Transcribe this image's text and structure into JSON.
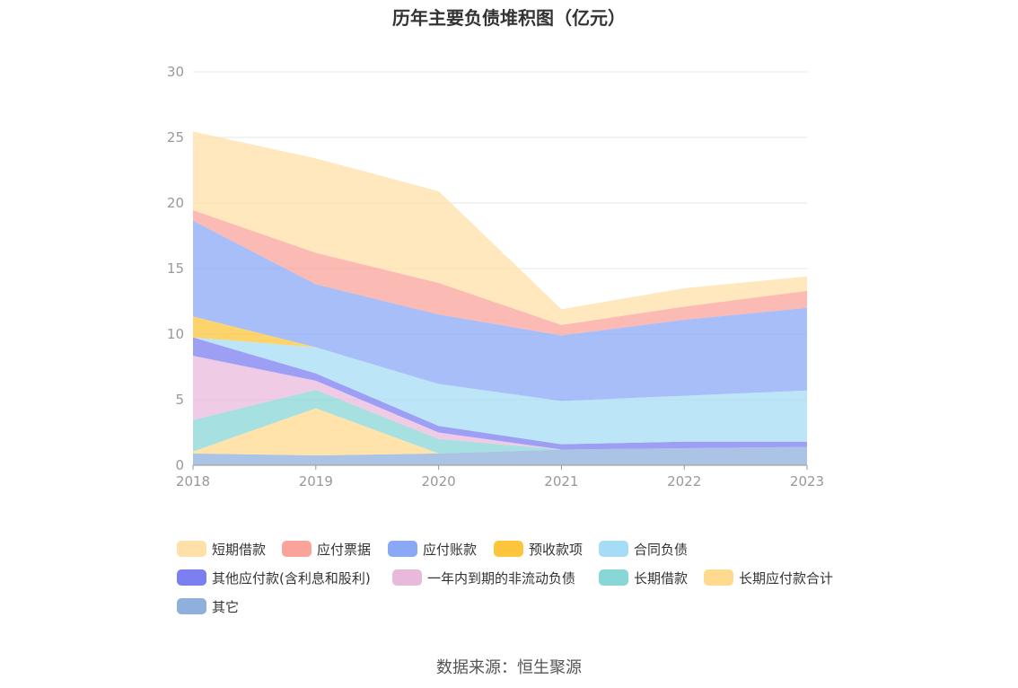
{
  "chart_data": {
    "type": "area",
    "stacked": true,
    "title": "历年主要负债堆积图（亿元）",
    "x": [
      "2018",
      "2019",
      "2020",
      "2021",
      "2022",
      "2023"
    ],
    "ylim": [
      0,
      30
    ],
    "yticks": [
      0,
      5,
      10,
      15,
      20,
      25,
      30
    ],
    "grid": true,
    "legend_position": "bottom",
    "series": [
      {
        "name": "其它",
        "color": "#8fb0dc",
        "values": [
          0.9,
          0.75,
          0.9,
          1.2,
          1.3,
          1.4
        ]
      },
      {
        "name": "长期应付款合计",
        "color": "#ffd98e",
        "values": [
          0.15,
          3.6,
          0.0,
          0.0,
          0.0,
          0.0
        ]
      },
      {
        "name": "长期借款",
        "color": "#88d6d6",
        "values": [
          2.4,
          1.4,
          1.1,
          0.0,
          0.0,
          0.0
        ]
      },
      {
        "name": "一年内到期的非流动负债",
        "color": "#e9b9dc",
        "values": [
          4.9,
          0.7,
          0.5,
          0.0,
          0.0,
          0.0
        ]
      },
      {
        "name": "其他应付款(含利息和股利)",
        "color": "#7b7ff0",
        "values": [
          1.4,
          0.55,
          0.5,
          0.4,
          0.5,
          0.4
        ]
      },
      {
        "name": "合同负债",
        "color": "#a6dcf5",
        "values": [
          0.0,
          2.0,
          3.2,
          3.3,
          3.5,
          3.9
        ]
      },
      {
        "name": "预收款项",
        "color": "#fcc53b",
        "values": [
          1.6,
          0.0,
          0.0,
          0.0,
          0.0,
          0.0
        ]
      },
      {
        "name": "应付账款",
        "color": "#8ba8f7",
        "values": [
          7.3,
          4.8,
          5.3,
          5.0,
          5.8,
          6.3
        ]
      },
      {
        "name": "应付票据",
        "color": "#f9a39a",
        "values": [
          0.8,
          2.4,
          2.4,
          0.8,
          1.0,
          1.3
        ]
      },
      {
        "name": "短期借款",
        "color": "#ffe0a8",
        "values": [
          6.0,
          7.2,
          7.0,
          1.2,
          1.4,
          1.1
        ]
      }
    ],
    "legend_order": [
      "短期借款",
      "应付票据",
      "应付账款",
      "预收款项",
      "合同负债",
      "其他应付款(含利息和股利)",
      "一年内到期的非流动负债",
      "长期借款",
      "长期应付款合计",
      "其它"
    ]
  },
  "source": "数据来源：恒生聚源"
}
